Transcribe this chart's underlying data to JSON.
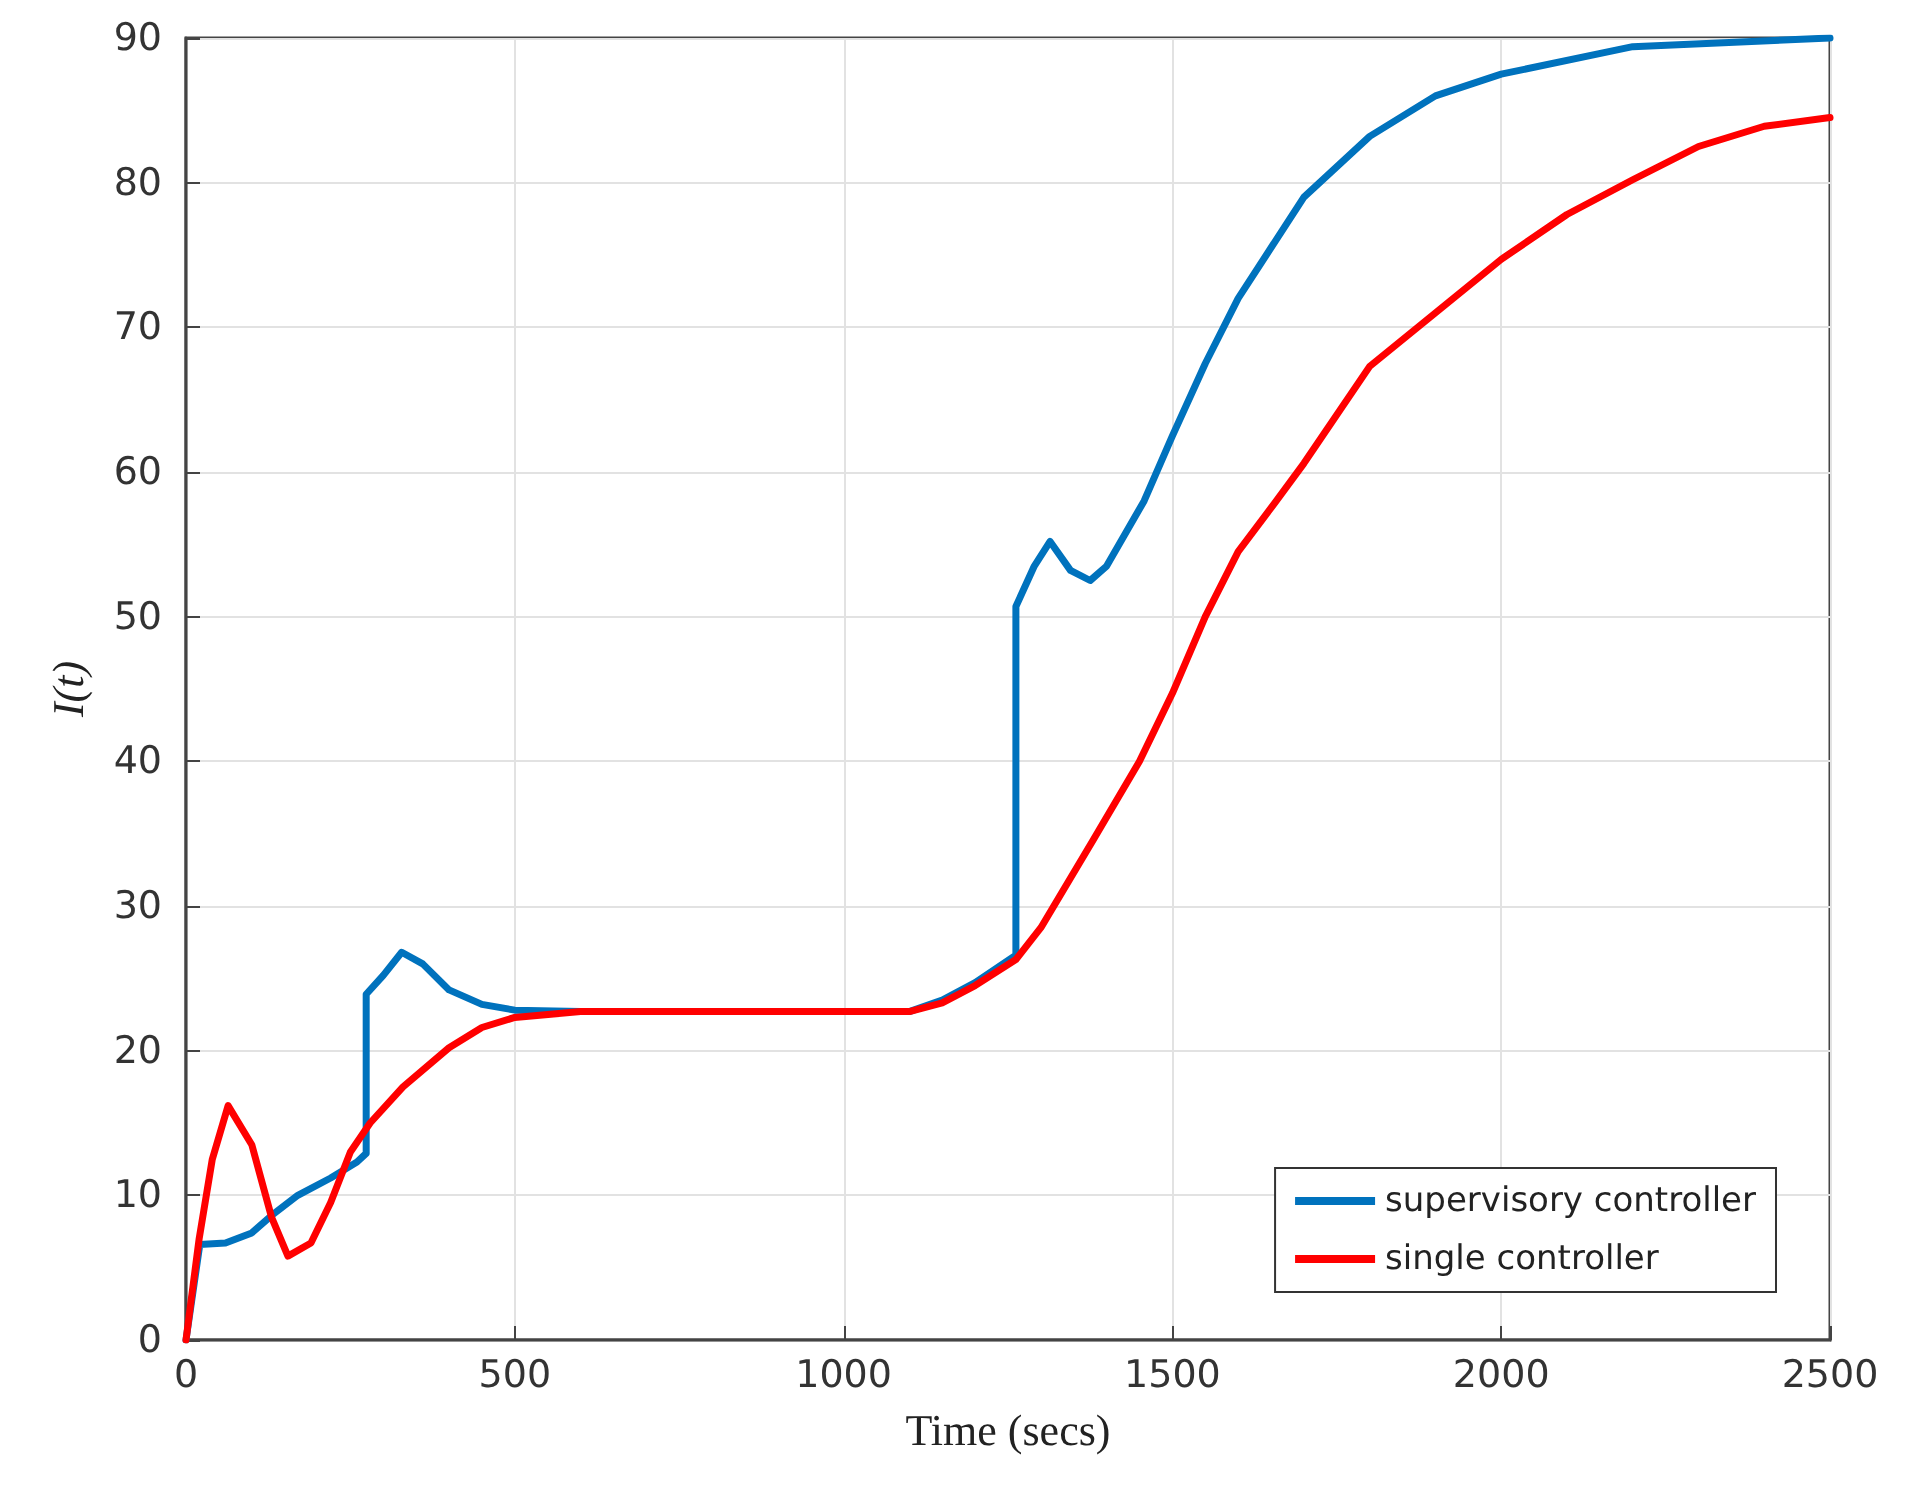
{
  "chart_data": {
    "type": "line",
    "xlabel": "Time (secs)",
    "ylabel": "I(t)",
    "xlim": [
      0,
      2500
    ],
    "xticks": [
      0,
      500,
      1000,
      1500,
      2000,
      2500
    ],
    "ylim": [
      0,
      90
    ],
    "yticks": [
      0,
      10,
      20,
      30,
      40,
      50,
      60,
      70,
      80,
      90
    ],
    "grid": true,
    "legend": "bottom right",
    "marker": "none",
    "line_style": "solid",
    "series": [
      {
        "name": "supervisory controller",
        "color": "#0072bd",
        "x": [
          0,
          21,
          60,
          100,
          130,
          170,
          220,
          260,
          274,
          274,
          300,
          328,
          360,
          400,
          450,
          500,
          600,
          1100,
          1150,
          1200,
          1262,
          1262,
          1290,
          1314,
          1345,
          1375,
          1400,
          1457,
          1500,
          1550,
          1600,
          1700,
          1800,
          1900,
          2000,
          2200,
          2500
        ],
        "values": [
          0,
          6.6,
          6.7,
          7.4,
          8.6,
          10,
          11.2,
          12.3,
          12.9,
          23.9,
          25.2,
          26.8,
          26,
          24.2,
          23.2,
          22.8,
          22.7,
          22.7,
          23.5,
          24.7,
          26.6,
          50.7,
          53.5,
          55.2,
          53.2,
          52.5,
          53.5,
          58,
          62.5,
          67.5,
          72,
          79,
          83.2,
          86,
          87.5,
          89.4,
          90
        ]
      },
      {
        "name": "single controller",
        "color": "#ff0000",
        "x": [
          0,
          20,
          40,
          64,
          100,
          130,
          155,
          190,
          220,
          250,
          280,
          330,
          400,
          450,
          500,
          600,
          1100,
          1150,
          1200,
          1262,
          1300,
          1380,
          1450,
          1500,
          1550,
          1600,
          1658,
          1700,
          1800,
          1900,
          2000,
          2100,
          2200,
          2300,
          2400,
          2500
        ],
        "values": [
          0,
          7,
          12.5,
          16.2,
          13.5,
          8.5,
          5.8,
          6.7,
          9.5,
          13,
          15,
          17.5,
          20.2,
          21.6,
          22.3,
          22.7,
          22.7,
          23.3,
          24.5,
          26.3,
          28.5,
          34.6,
          40,
          44.7,
          50,
          54.5,
          58,
          60.6,
          67.3,
          71,
          74.7,
          77.8,
          80.2,
          82.5,
          83.9,
          84.5
        ]
      }
    ]
  }
}
